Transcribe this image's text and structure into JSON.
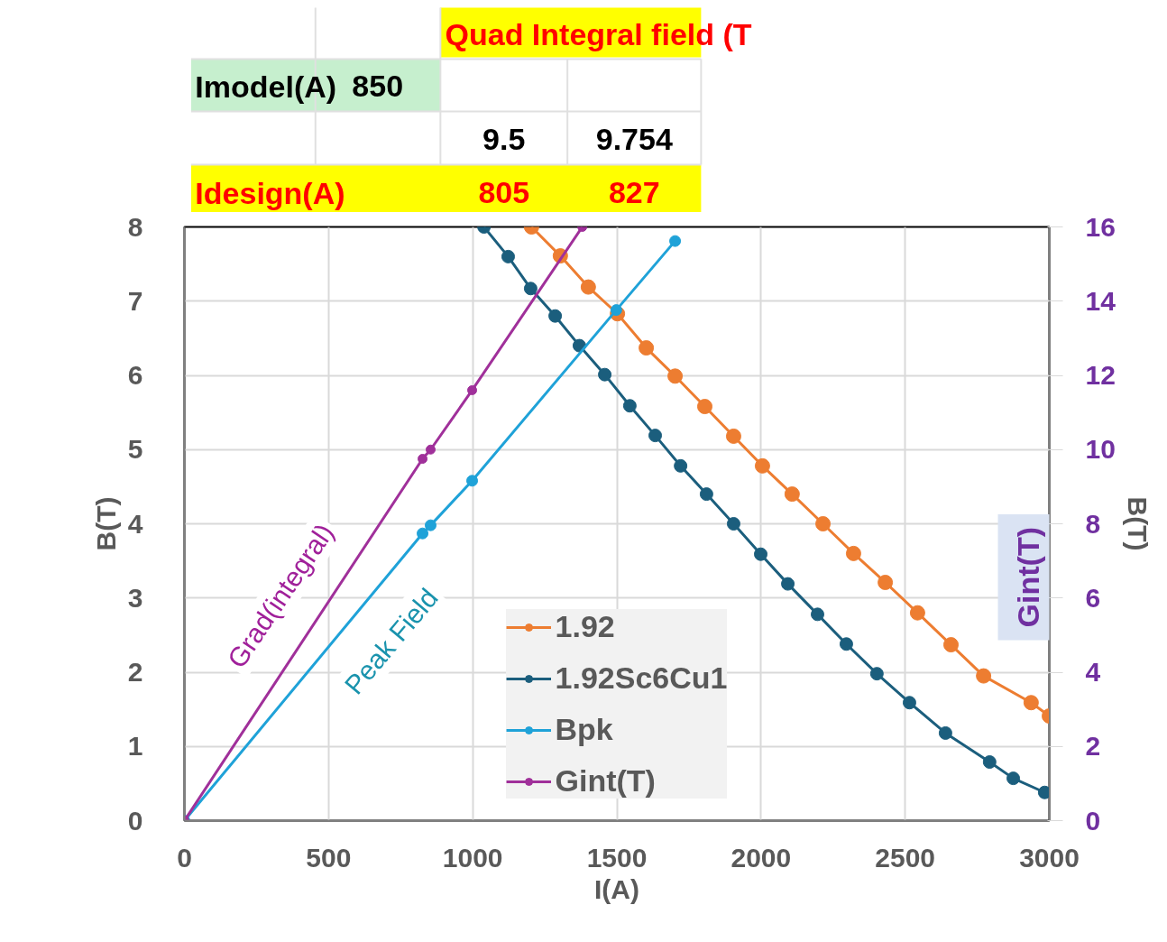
{
  "chart_data": {
    "type": "line",
    "xlabel": "I(A)",
    "ylabel": "B(T)",
    "y2label": "Gint(T)",
    "xlim": [
      0,
      3000
    ],
    "xticks": [
      0,
      500,
      1000,
      1500,
      2000,
      2500,
      3000
    ],
    "ylim": [
      0,
      8
    ],
    "yticks": [
      0,
      1,
      2,
      3,
      4,
      5,
      6,
      7,
      8
    ],
    "y2lim": [
      0,
      16
    ],
    "y2ticks": [
      0,
      2,
      4,
      6,
      8,
      10,
      12,
      14,
      16
    ],
    "grid": true,
    "legend": "bottom",
    "marker": "circle",
    "line_style": "solid",
    "series": [
      {
        "name": "1.92",
        "color": "#ed7d31",
        "x": [
          1204,
          1304,
          1401,
          1502,
          1602,
          1702,
          1805,
          1905,
          2005,
          2108,
          2215,
          2321,
          2431,
          2543,
          2659,
          2772,
          2937,
          3000
        ],
        "values": [
          8.0,
          7.61,
          7.19,
          6.83,
          6.37,
          5.99,
          5.58,
          5.18,
          4.78,
          4.4,
          4.0,
          3.6,
          3.21,
          2.8,
          2.37,
          1.95,
          1.59,
          1.41
        ]
      },
      {
        "name": "1.92Sc6Cu1",
        "color": "#1b5e7d",
        "x": [
          1039,
          1123,
          1201,
          1286,
          1370,
          1458,
          1545,
          1633,
          1721,
          1811,
          1905,
          1999,
          2093,
          2196,
          2296,
          2402,
          2515,
          2640,
          2793,
          2875,
          2984
        ],
        "values": [
          8.0,
          7.6,
          7.17,
          6.8,
          6.4,
          6.01,
          5.59,
          5.19,
          4.78,
          4.4,
          4.0,
          3.59,
          3.19,
          2.78,
          2.38,
          1.98,
          1.59,
          1.18,
          0.79,
          0.57,
          0.38
        ]
      },
      {
        "name": "Bpk",
        "color": "#1fa2d8",
        "x": [
          0,
          826,
          854,
          998,
          1498,
          1702
        ],
        "values": [
          0,
          3.87,
          3.98,
          4.58,
          6.88,
          7.81
        ]
      },
      {
        "name": "Gint(T)",
        "color": "#a0309a",
        "axis": "y2",
        "x": [
          0,
          826,
          854,
          998,
          1380
        ],
        "values": [
          0,
          9.75,
          10.0,
          11.6,
          16.0
        ]
      }
    ],
    "annotations": [
      "Quad Integral field (T",
      "Imodel(A)",
      "850",
      "9.5",
      "9.754",
      "Idesign(A)",
      "805",
      "827",
      "Grad(integral)",
      "Peak Field",
      "B(T)"
    ]
  }
}
